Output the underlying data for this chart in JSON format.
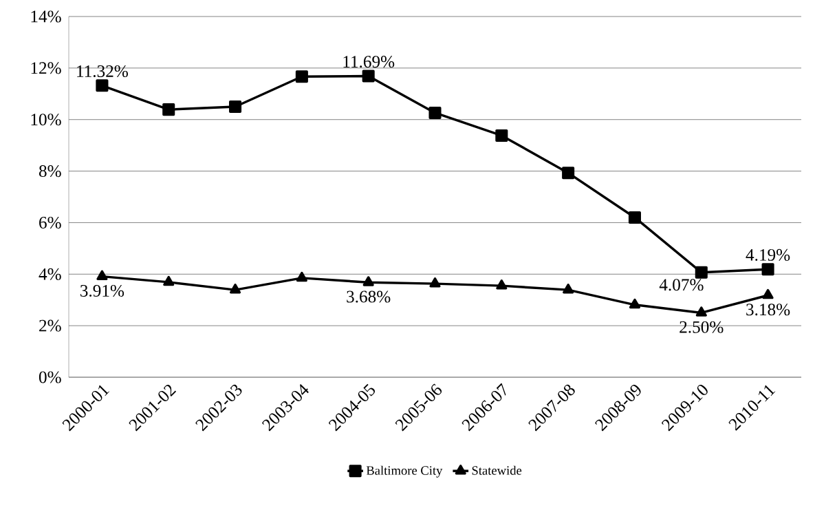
{
  "chart_data": {
    "type": "line",
    "categories": [
      "2000-01",
      "2001-02",
      "2002-03",
      "2003-04",
      "2004-05",
      "2005-06",
      "2006-07",
      "2007-08",
      "2008-09",
      "2009-10",
      "2010-11"
    ],
    "series": [
      {
        "name": "Baltimore City",
        "color": "#000000",
        "marker": "square",
        "values": [
          11.32,
          10.39,
          10.5,
          11.67,
          11.69,
          10.26,
          9.38,
          7.93,
          6.2,
          4.07,
          4.19
        ],
        "value_labels": [
          "11.32%",
          null,
          null,
          null,
          "11.69%",
          null,
          null,
          null,
          null,
          "4.07%",
          "4.19%"
        ]
      },
      {
        "name": "Statewide",
        "color": "#000000",
        "marker": "triangle",
        "values": [
          3.91,
          3.69,
          3.39,
          3.85,
          3.68,
          3.63,
          3.55,
          3.39,
          2.81,
          2.5,
          3.18
        ],
        "value_labels": [
          "3.91%",
          null,
          null,
          null,
          "3.68%",
          null,
          null,
          null,
          null,
          "2.50%",
          "3.18%"
        ]
      }
    ],
    "ylim": [
      0,
      14
    ],
    "yticks": [
      {
        "value": 0,
        "label": "0%"
      },
      {
        "value": 2,
        "label": "2%"
      },
      {
        "value": 4,
        "label": "4%"
      },
      {
        "value": 6,
        "label": "6%"
      },
      {
        "value": 8,
        "label": "8%"
      },
      {
        "value": 10,
        "label": "10%"
      },
      {
        "value": 12,
        "label": "12%"
      },
      {
        "value": 14,
        "label": "14%"
      }
    ],
    "grid": "y",
    "legend": "bottom",
    "line_style": "solid"
  }
}
